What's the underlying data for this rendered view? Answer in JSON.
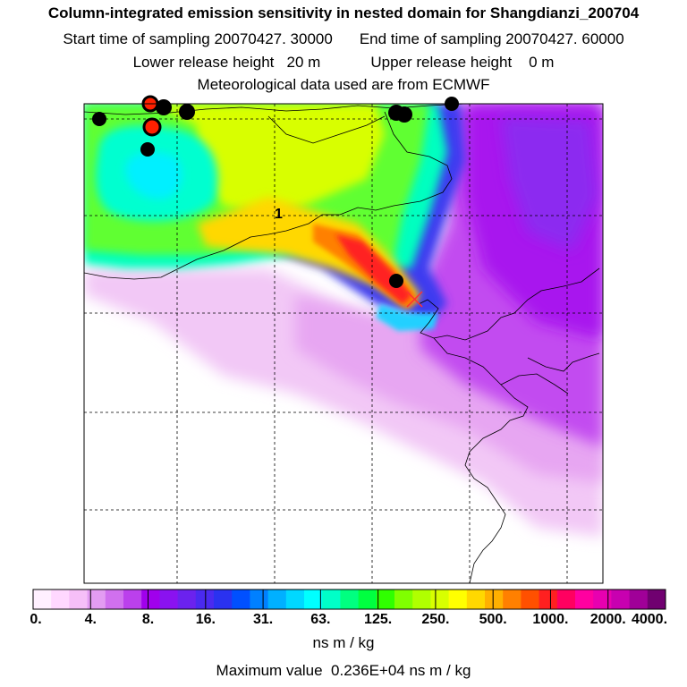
{
  "header": {
    "title": "Column-integrated emission sensitivity in nested domain for Shangdianzi_200704",
    "start_sampling": "Start time of sampling 20070427. 30000",
    "end_sampling": "End time of sampling 20070427. 60000",
    "lower_release": "Lower release height   20 m",
    "upper_release": "Upper release height    0 m",
    "meteo": "Meteorological data used are from ECMWF"
  },
  "map": {
    "contour_label": "1",
    "receptor_marker": "x-marker",
    "dot_colors": {
      "black": "#000000",
      "red": "#ff2000"
    }
  },
  "colorbar": {
    "tick_labels": [
      "0.",
      "4.",
      "8.",
      "16.",
      "31.",
      "63.",
      "125.",
      "250.",
      "500.",
      "1000.",
      "2000.",
      "4000."
    ],
    "colors": [
      "#fff0ff",
      "#ffd8ff",
      "#f6bff8",
      "#e39cf2",
      "#d070ee",
      "#bb40ec",
      "#a000ec",
      "#8a12f0",
      "#6b22ee",
      "#4a2af0",
      "#2a32f0",
      "#0050ff",
      "#0080ff",
      "#00b0ff",
      "#00d8ff",
      "#00ffff",
      "#00ffc8",
      "#00ff80",
      "#00ff40",
      "#30ff00",
      "#80ff00",
      "#b0ff00",
      "#d8ff00",
      "#ffff00",
      "#ffd800",
      "#ffb000",
      "#ff8000",
      "#ff5000",
      "#ff2020",
      "#ff0060",
      "#ff00a0",
      "#e800b0",
      "#c800b0",
      "#a00098",
      "#700070"
    ],
    "units": "ns m / kg",
    "max_value": "Maximum value  0.236E+04 ns m / kg"
  }
}
